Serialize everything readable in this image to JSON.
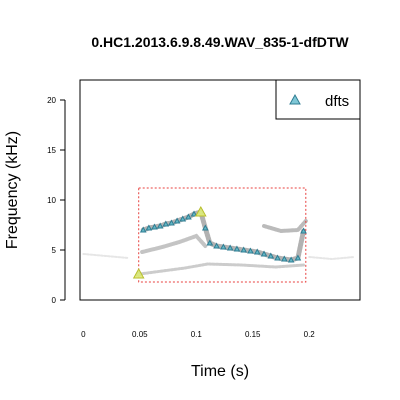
{
  "chart_data": {
    "type": "scatter",
    "title": "0.HC1.2013.6.9.8.49.WAV_835-1-dfDTW",
    "xlabel": "Time (s)",
    "ylabel": "Frequency (kHz)",
    "xlim": [
      -0.003,
      0.245
    ],
    "ylim": [
      0,
      22
    ],
    "x_ticks": [
      0,
      0.05,
      0.1,
      0.15,
      0.2
    ],
    "x_tick_labels": [
      "0",
      "0.05",
      "0.1",
      "0.15",
      "0.2"
    ],
    "y_ticks": [
      0,
      5,
      10,
      15,
      20
    ],
    "y_tick_labels": [
      "0",
      "5",
      "10",
      "15",
      "20"
    ],
    "legend": {
      "position": "top-right",
      "entries": [
        "dfts"
      ]
    },
    "colors": {
      "points": "#5bb8c8",
      "points_edge": "#2f7d93",
      "highlight": "#e8f07a",
      "highlight_edge": "#b6bd2c",
      "box": "#e8413f",
      "spectrogram": "#555555"
    },
    "selection_box": {
      "x": [
        0.049,
        0.197
      ],
      "y": [
        1.8,
        11.2
      ]
    },
    "highlighted_points": [
      {
        "x": 0.049,
        "y": 2.6
      },
      {
        "x": 0.104,
        "y": 8.8
      }
    ],
    "series": [
      {
        "name": "dfts",
        "points": [
          {
            "x": 0.049,
            "y": 2.6
          },
          {
            "x": 0.053,
            "y": 7.0
          },
          {
            "x": 0.058,
            "y": 7.2
          },
          {
            "x": 0.063,
            "y": 7.3
          },
          {
            "x": 0.068,
            "y": 7.4
          },
          {
            "x": 0.073,
            "y": 7.6
          },
          {
            "x": 0.078,
            "y": 7.7
          },
          {
            "x": 0.083,
            "y": 7.9
          },
          {
            "x": 0.088,
            "y": 8.1
          },
          {
            "x": 0.093,
            "y": 8.3
          },
          {
            "x": 0.098,
            "y": 8.6
          },
          {
            "x": 0.104,
            "y": 8.8
          },
          {
            "x": 0.108,
            "y": 7.2
          },
          {
            "x": 0.112,
            "y": 5.7
          },
          {
            "x": 0.118,
            "y": 5.4
          },
          {
            "x": 0.124,
            "y": 5.3
          },
          {
            "x": 0.13,
            "y": 5.2
          },
          {
            "x": 0.136,
            "y": 5.1
          },
          {
            "x": 0.142,
            "y": 5.0
          },
          {
            "x": 0.148,
            "y": 4.9
          },
          {
            "x": 0.154,
            "y": 4.8
          },
          {
            "x": 0.16,
            "y": 4.6
          },
          {
            "x": 0.166,
            "y": 4.4
          },
          {
            "x": 0.172,
            "y": 4.2
          },
          {
            "x": 0.178,
            "y": 4.1
          },
          {
            "x": 0.184,
            "y": 4.0
          },
          {
            "x": 0.19,
            "y": 4.2
          },
          {
            "x": 0.195,
            "y": 6.9
          }
        ]
      }
    ]
  }
}
